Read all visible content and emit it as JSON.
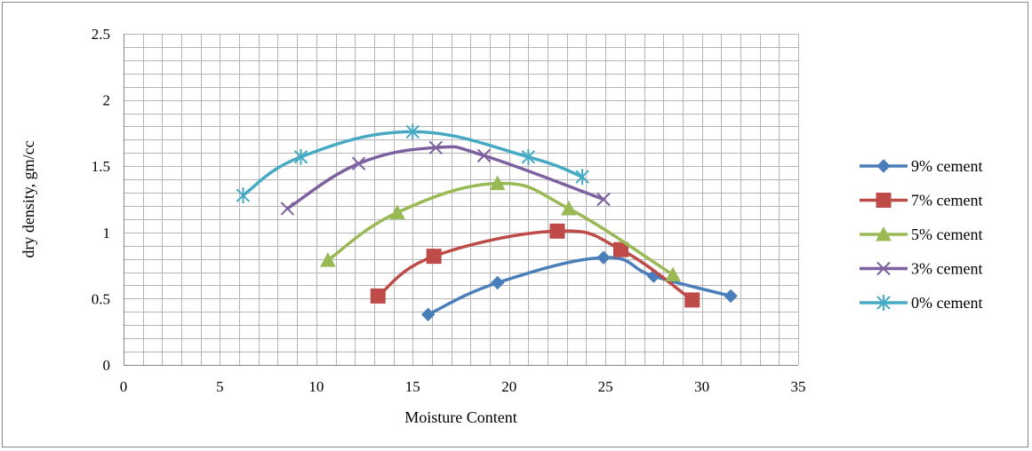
{
  "chart_data": {
    "type": "line",
    "title": "",
    "xlabel": "Moisture Content",
    "ylabel": "dry  density, gm/cc",
    "xlim": [
      0,
      35
    ],
    "ylim": [
      0,
      2.5
    ],
    "x_ticks": [
      0,
      5,
      10,
      15,
      20,
      25,
      30,
      35
    ],
    "y_ticks": [
      0,
      0.5,
      1,
      1.5,
      2,
      2.5
    ],
    "x_tick_labels": [
      "0",
      "5",
      "10",
      "15",
      "20",
      "25",
      "30",
      "35"
    ],
    "y_tick_labels": [
      "0",
      "0.5",
      "1",
      "1.5",
      "2",
      "2.5"
    ],
    "x_minor_step": 1,
    "y_minor_step": 0.1,
    "grid": true,
    "smooth": true,
    "legend_position": "right",
    "series": [
      {
        "name": "9% cement",
        "color": "#4a7ebb",
        "marker": "diamond",
        "points": [
          [
            15.8,
            0.38
          ],
          [
            19.4,
            0.62
          ],
          [
            24.9,
            0.81
          ],
          [
            27.5,
            0.67
          ],
          [
            31.5,
            0.52
          ]
        ]
      },
      {
        "name": "7% cement",
        "color": "#be4b48",
        "marker": "square",
        "points": [
          [
            13.2,
            0.52
          ],
          [
            16.1,
            0.82
          ],
          [
            22.5,
            1.01
          ],
          [
            25.8,
            0.87
          ],
          [
            29.5,
            0.49
          ]
        ]
      },
      {
        "name": "5% cement",
        "color": "#98b954",
        "marker": "triangle",
        "points": [
          [
            10.6,
            0.79
          ],
          [
            14.2,
            1.15
          ],
          [
            19.4,
            1.37
          ],
          [
            23.1,
            1.18
          ],
          [
            28.5,
            0.68
          ]
        ]
      },
      {
        "name": "3% cement",
        "color": "#7d60a0",
        "marker": "x",
        "points": [
          [
            8.5,
            1.18
          ],
          [
            12.2,
            1.52
          ],
          [
            16.2,
            1.64
          ],
          [
            18.7,
            1.58
          ],
          [
            24.9,
            1.25
          ]
        ]
      },
      {
        "name": "0% cement",
        "color": "#46aac5",
        "marker": "star",
        "points": [
          [
            6.2,
            1.28
          ],
          [
            9.2,
            1.57
          ],
          [
            15.0,
            1.76
          ],
          [
            21.0,
            1.57
          ],
          [
            23.8,
            1.42
          ]
        ]
      }
    ]
  }
}
